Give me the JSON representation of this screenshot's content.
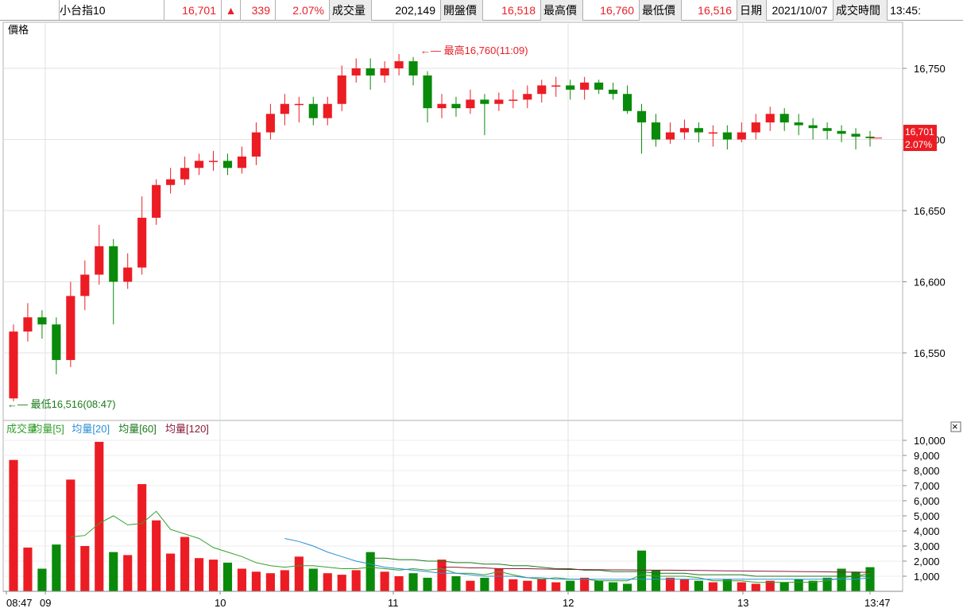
{
  "header": {
    "symbol": "小台指10",
    "last_price": "16,701",
    "change_arrow": "▲",
    "change": "339",
    "change_pct": "2.07%",
    "volume_label": "成交量",
    "volume": "202,149",
    "open_label": "開盤價",
    "open": "16,518",
    "high_label": "最高價",
    "high": "16,760",
    "low_label": "最低價",
    "low": "16,516",
    "date_label": "日期",
    "date": "2021/10/07",
    "time_label": "成交時間",
    "time": "13:45:"
  },
  "price_panel": {
    "label": "價格",
    "high_annotation": "←— 最高16,760(11:09)",
    "low_annotation": "←— 最低16,516(08:47)",
    "last_price_tag": "16,701",
    "last_pct_tag": "2.07%",
    "y_ticks": [
      "16,750",
      "16,700",
      "16,650",
      "16,600",
      "16,550"
    ]
  },
  "volume_panel": {
    "legend": [
      {
        "text": "成交量",
        "color": "#33a02c"
      },
      {
        "text": "均量[5]",
        "color": "#33a02c"
      },
      {
        "text": "均量[20]",
        "color": "#2a8fd6"
      },
      {
        "text": "均量[60]",
        "color": "#1a7a1a"
      },
      {
        "text": "均量[120]",
        "color": "#8b1a3a"
      }
    ],
    "close_icon": "×",
    "y_ticks": [
      "10,000",
      "9,000",
      "8,000",
      "7,000",
      "6,000",
      "5,000",
      "4,000",
      "3,000",
      "2,000",
      "1,000"
    ]
  },
  "x_axis": {
    "ticks": [
      "08:47",
      "09",
      "10",
      "11",
      "12",
      "13",
      "13:47"
    ]
  },
  "colors": {
    "up": "#ec1c24",
    "down": "#0a8a0a",
    "ma5": "#33a02c",
    "ma20": "#2a8fd6",
    "ma60": "#1a7a1a",
    "ma120": "#8b1a3a"
  },
  "chart_data": [
    {
      "type": "candlestick",
      "interval": "1 minute candles, shown aggregated",
      "ylabel": "價格",
      "ylim": [
        16505,
        16780
      ],
      "high": [
        16570,
        16585,
        16580,
        16575,
        16600,
        16615,
        16640,
        16630,
        16620,
        16660,
        16672,
        16680,
        16688,
        16690,
        16692,
        16690,
        16695,
        16712,
        16725,
        16732,
        16730,
        16730,
        16730,
        16752,
        16757,
        16757,
        16755,
        16760,
        16758,
        16748,
        16732,
        16730,
        16735,
        16732,
        16733,
        16735,
        16738,
        16742,
        16744,
        16742,
        16744,
        16742,
        16740,
        16738,
        16725,
        16718,
        16712,
        16714,
        16712,
        16710,
        16710,
        16712,
        16718,
        16723,
        16722,
        16718,
        16715,
        16712,
        16710,
        16708,
        16706
      ],
      "low": [
        16516,
        16558,
        16560,
        16535,
        16540,
        16580,
        16598,
        16570,
        16595,
        16605,
        16640,
        16662,
        16668,
        16675,
        16678,
        16675,
        16676,
        16682,
        16700,
        16710,
        16712,
        16710,
        16710,
        16720,
        16740,
        16735,
        16740,
        16745,
        16738,
        16712,
        16715,
        16716,
        16718,
        16703,
        16720,
        16722,
        16722,
        16726,
        16730,
        16728,
        16728,
        16732,
        16728,
        16718,
        16690,
        16695,
        16697,
        16700,
        16698,
        16695,
        16693,
        16698,
        16700,
        16706,
        16706,
        16703,
        16700,
        16700,
        16698,
        16693,
        16695
      ],
      "last": 16701,
      "x": [
        "08:47",
        "08:50",
        "08:55",
        "09:00",
        "09:05",
        "09:10",
        "09:15",
        "09:20",
        "09:25",
        "09:30",
        "09:35",
        "09:40",
        "09:45",
        "09:50",
        "09:55",
        "10:00",
        "10:05",
        "10:10",
        "10:15",
        "10:20",
        "10:25",
        "10:30",
        "10:35",
        "10:40",
        "10:45",
        "10:50",
        "10:55",
        "11:00",
        "11:05",
        "11:10",
        "11:15",
        "11:20",
        "11:25",
        "11:30",
        "11:35",
        "11:40",
        "11:45",
        "11:50",
        "11:55",
        "12:00",
        "12:05",
        "12:10",
        "12:15",
        "12:20",
        "12:25",
        "12:30",
        "12:35",
        "12:40",
        "12:45",
        "12:50",
        "12:55",
        "13:00",
        "13:05",
        "13:10",
        "13:15",
        "13:20",
        "13:25",
        "13:30",
        "13:35",
        "13:40",
        "13:45"
      ],
      "open": [
        16518,
        16565,
        16575,
        16570,
        16545,
        16590,
        16605,
        16625,
        16600,
        16610,
        16645,
        16668,
        16672,
        16680,
        16685,
        16685,
        16680,
        16688,
        16705,
        16718,
        16725,
        16725,
        16715,
        16725,
        16745,
        16750,
        16745,
        16750,
        16755,
        16745,
        16722,
        16725,
        16722,
        16728,
        16725,
        16728,
        16728,
        16732,
        16738,
        16738,
        16735,
        16740,
        16735,
        16732,
        16720,
        16712,
        16700,
        16705,
        16708,
        16705,
        16705,
        16700,
        16705,
        16712,
        16718,
        16712,
        16710,
        16708,
        16706,
        16704,
        16702
      ],
      "close": [
        16565,
        16575,
        16570,
        16545,
        16590,
        16605,
        16625,
        16600,
        16610,
        16645,
        16668,
        16672,
        16680,
        16685,
        16685,
        16680,
        16688,
        16705,
        16718,
        16725,
        16725,
        16715,
        16725,
        16745,
        16750,
        16745,
        16750,
        16755,
        16745,
        16722,
        16725,
        16722,
        16728,
        16725,
        16728,
        16728,
        16732,
        16738,
        16738,
        16735,
        16740,
        16735,
        16732,
        16720,
        16712,
        16700,
        16705,
        16708,
        16705,
        16705,
        16700,
        16705,
        16712,
        16718,
        16712,
        16710,
        16708,
        16706,
        16704,
        16702,
        16701
      ]
    },
    {
      "type": "bar",
      "ylabel": "成交量",
      "ylim": [
        0,
        10000
      ],
      "x": [
        "08:47",
        "08:50",
        "08:55",
        "09:00",
        "09:05",
        "09:10",
        "09:15",
        "09:20",
        "09:25",
        "09:30",
        "09:35",
        "09:40",
        "09:45",
        "09:50",
        "09:55",
        "10:00",
        "10:05",
        "10:10",
        "10:15",
        "10:20",
        "10:25",
        "10:30",
        "10:35",
        "10:40",
        "10:45",
        "10:50",
        "10:55",
        "11:00",
        "11:05",
        "11:10",
        "11:15",
        "11:20",
        "11:25",
        "11:30",
        "11:35",
        "11:40",
        "11:45",
        "11:50",
        "11:55",
        "12:00",
        "12:05",
        "12:10",
        "12:15",
        "12:20",
        "12:25",
        "12:30",
        "12:35",
        "12:40",
        "12:45",
        "12:50",
        "12:55",
        "13:00",
        "13:05",
        "13:10",
        "13:15",
        "13:20",
        "13:25",
        "13:30",
        "13:35",
        "13:40",
        "13:45"
      ],
      "values": [
        8700,
        2900,
        1500,
        3100,
        7400,
        3000,
        9900,
        2600,
        2400,
        7100,
        4700,
        2500,
        3600,
        2200,
        2100,
        1900,
        1500,
        1300,
        1200,
        1400,
        2300,
        1500,
        1200,
        1100,
        1400,
        2600,
        1300,
        1000,
        1200,
        900,
        2100,
        1000,
        700,
        900,
        1500,
        800,
        700,
        800,
        600,
        700,
        900,
        700,
        600,
        500,
        2700,
        1400,
        900,
        800,
        700,
        600,
        800,
        600,
        500,
        700,
        600,
        800,
        700,
        900,
        1500,
        1300,
        1600
      ],
      "series": [
        {
          "name": "均量[5]",
          "values": [
            null,
            null,
            null,
            null,
            3600,
            3700,
            4500,
            5000,
            4400,
            4500,
            5300,
            4100,
            3800,
            3500,
            2900,
            2600,
            2300,
            1900,
            1700,
            1600,
            1700,
            1700,
            1600,
            1500,
            1500,
            1600,
            1500,
            1400,
            1500,
            1400,
            1500,
            1200,
            1200,
            1100,
            1300,
            1100,
            900,
            800,
            900,
            800,
            800,
            700,
            700,
            700,
            1100,
            1000,
            1000,
            1000,
            900,
            700,
            700,
            700,
            600,
            600,
            600,
            600,
            600,
            700,
            900,
            1000,
            1200
          ]
        },
        {
          "name": "均量[20]",
          "values": [
            null,
            null,
            null,
            null,
            null,
            null,
            null,
            null,
            null,
            null,
            null,
            null,
            null,
            null,
            null,
            null,
            null,
            null,
            null,
            3500,
            3300,
            3000,
            2600,
            2300,
            2000,
            1800,
            1600,
            1500,
            1400,
            1300,
            1200,
            1200,
            1100,
            1000,
            1000,
            1000,
            900,
            900,
            800,
            800,
            800,
            800,
            800,
            800,
            800,
            800,
            800,
            800,
            800,
            800,
            800,
            800,
            800,
            800,
            800,
            800,
            800,
            800,
            800,
            800,
            900
          ]
        },
        {
          "name": "均量[60]",
          "values": [
            null,
            null,
            null,
            null,
            null,
            null,
            null,
            null,
            null,
            null,
            null,
            null,
            null,
            null,
            null,
            null,
            null,
            null,
            null,
            null,
            null,
            null,
            null,
            null,
            null,
            2200,
            2200,
            2100,
            2100,
            2000,
            2000,
            1900,
            1900,
            1800,
            1800,
            1700,
            1700,
            1600,
            1500,
            1500,
            1400,
            1400,
            1300,
            1300,
            1300,
            1200,
            1200,
            1200,
            1100,
            1100,
            1100,
            1100,
            1000,
            1000,
            1000,
            1000,
            1000,
            1000,
            1000,
            1000,
            1000
          ]
        },
        {
          "name": "均量[120]",
          "values": [
            null,
            null,
            null,
            null,
            null,
            null,
            null,
            null,
            null,
            null,
            null,
            null,
            null,
            null,
            null,
            null,
            null,
            null,
            null,
            null,
            null,
            null,
            null,
            null,
            null,
            null,
            null,
            null,
            null,
            null,
            1600,
            1600,
            1550,
            1550,
            1500,
            1500,
            1500,
            1480,
            1460,
            1450,
            1440,
            1430,
            1420,
            1420,
            1410,
            1400,
            1400,
            1390,
            1380,
            1370,
            1360,
            1350,
            1340,
            1330,
            1320,
            1310,
            1300,
            1290,
            1280,
            1270,
            1260
          ]
        }
      ]
    }
  ]
}
